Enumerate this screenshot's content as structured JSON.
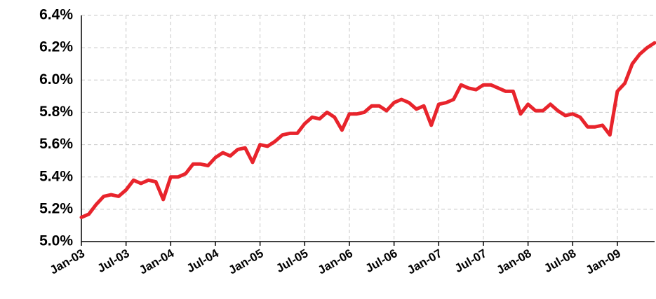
{
  "chart_data": {
    "type": "line",
    "categories": [
      "Jan-03",
      null,
      null,
      null,
      null,
      null,
      "Jul-03",
      null,
      null,
      null,
      null,
      null,
      "Jan-04",
      null,
      null,
      null,
      null,
      null,
      "Jul-04",
      null,
      null,
      null,
      null,
      null,
      "Jan-05",
      null,
      null,
      null,
      null,
      null,
      "Jul-05",
      null,
      null,
      null,
      null,
      null,
      "Jan-06",
      null,
      null,
      null,
      null,
      null,
      "Jul-06",
      null,
      null,
      null,
      null,
      null,
      "Jan-07",
      null,
      null,
      null,
      null,
      null,
      "Jul-07",
      null,
      null,
      null,
      null,
      null,
      "Jan-08",
      null,
      null,
      null,
      null,
      null,
      "Jul-08",
      null,
      null,
      null,
      null,
      null,
      "Jan-09",
      null,
      null,
      null,
      null,
      null
    ],
    "series": [
      {
        "color": "#e8242c",
        "values": [
          5.15,
          5.17,
          5.23,
          5.28,
          5.29,
          5.28,
          5.32,
          5.38,
          5.36,
          5.38,
          5.37,
          5.26,
          5.4,
          5.4,
          5.42,
          5.48,
          5.48,
          5.47,
          5.52,
          5.55,
          5.53,
          5.57,
          5.58,
          5.49,
          5.6,
          5.59,
          5.62,
          5.66,
          5.67,
          5.67,
          5.73,
          5.77,
          5.76,
          5.8,
          5.77,
          5.69,
          5.79,
          5.79,
          5.8,
          5.84,
          5.84,
          5.81,
          5.86,
          5.88,
          5.86,
          5.82,
          5.84,
          5.72,
          5.85,
          5.86,
          5.88,
          5.97,
          5.95,
          5.94,
          5.97,
          5.97,
          5.95,
          5.93,
          5.93,
          5.79,
          5.85,
          5.81,
          5.81,
          5.85,
          5.81,
          5.78,
          5.79,
          5.77,
          5.71,
          5.71,
          5.72,
          5.66,
          5.93,
          5.98,
          6.1,
          6.16,
          6.2,
          6.23
        ]
      }
    ],
    "ylim": [
      5.0,
      6.4
    ],
    "yticks": [
      {
        "value": 5.0,
        "label": "5.0%"
      },
      {
        "value": 5.2,
        "label": "5.2%"
      },
      {
        "value": 5.4,
        "label": "5.4%"
      },
      {
        "value": 5.6,
        "label": "5.6%"
      },
      {
        "value": 5.8,
        "label": "5.8%"
      },
      {
        "value": 6.0,
        "label": "6.0%"
      },
      {
        "value": 6.2,
        "label": "6.2%"
      },
      {
        "value": 6.4,
        "label": "6.4%"
      }
    ],
    "grid": true
  }
}
